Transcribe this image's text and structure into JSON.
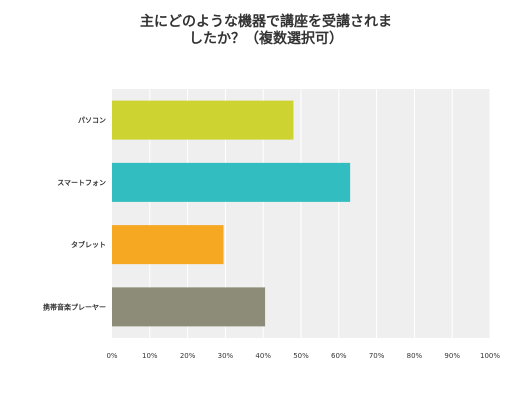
{
  "chart_data": {
    "type": "bar",
    "orientation": "horizontal",
    "title": "主にどのような機器で講座を受講されましたか？（複数選択可）",
    "categories": [
      "パソコン",
      "スマートフォン",
      "タブレット",
      "携帯音楽プレーヤー"
    ],
    "values": [
      48,
      63,
      29.5,
      40.5
    ],
    "colors": [
      "#CDD431",
      "#32BDC0",
      "#F6A822",
      "#8C8C78"
    ],
    "xlim": [
      0,
      100
    ],
    "xticks": [
      "0%",
      "10%",
      "20%",
      "30%",
      "40%",
      "50%",
      "60%",
      "70%",
      "80%",
      "90%",
      "100%"
    ],
    "grid": true,
    "legend": "none"
  }
}
